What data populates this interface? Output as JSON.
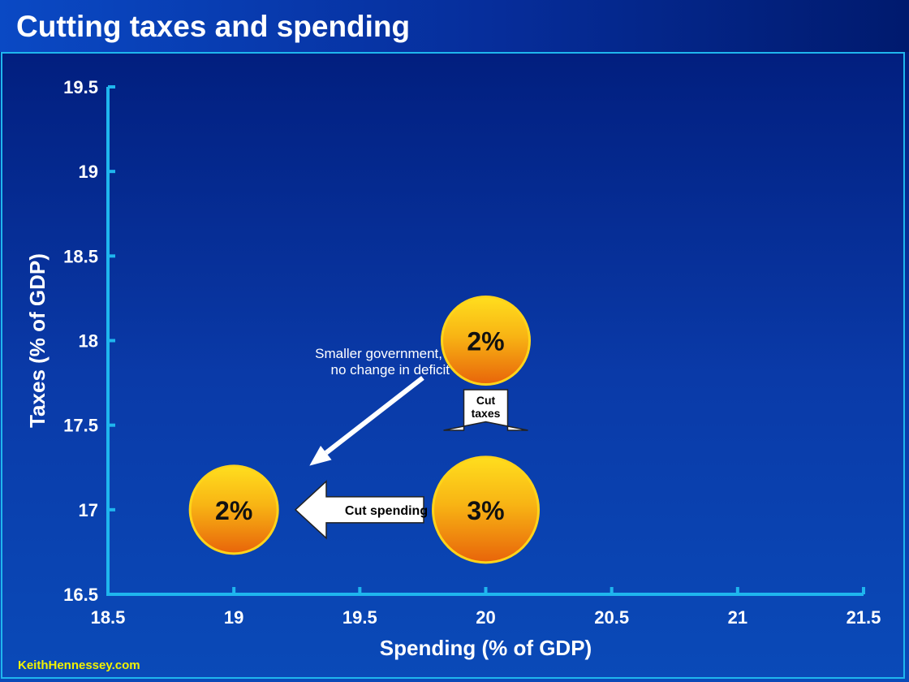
{
  "title": "Cutting taxes and spending",
  "footer": "KeithHennessey.com",
  "colors": {
    "axis": "#1fb6ee",
    "text": "#ffffff",
    "footer": "#f2f200",
    "bubble_top": "#ffde1e",
    "bubble_bottom": "#e8640a",
    "bubble_outline": "#ffd41a"
  },
  "chart_data": {
    "type": "scatter",
    "title": "",
    "xlabel": "Spending (% of GDP)",
    "ylabel": "Taxes (% of GDP)",
    "xlim": [
      18.5,
      21.5
    ],
    "ylim": [
      16.5,
      19.5
    ],
    "xticks": [
      18.5,
      19,
      19.5,
      20,
      20.5,
      21,
      21.5
    ],
    "yticks": [
      16.5,
      17,
      17.5,
      18,
      18.5,
      19,
      19.5
    ],
    "xtick_labels": [
      "18.5",
      "19",
      "19.5",
      "20",
      "20.5",
      "21",
      "21.5"
    ],
    "ytick_labels": [
      "16.5",
      "17",
      "17.5",
      "18",
      "18.5",
      "19",
      "19.5"
    ],
    "grid": false,
    "points": [
      {
        "x": 20,
        "y": 18,
        "label": "2%",
        "size": 2
      },
      {
        "x": 20,
        "y": 17,
        "label": "3%",
        "size": 3
      },
      {
        "x": 19,
        "y": 17,
        "label": "2%",
        "size": 2
      }
    ],
    "annotations": [
      {
        "kind": "block-arrow-down",
        "text": [
          "Cut",
          "taxes"
        ],
        "x": 20,
        "y": 17.52
      },
      {
        "kind": "block-arrow-left",
        "text": [
          "Cut spending"
        ],
        "x": 19.5,
        "y": 17
      },
      {
        "kind": "thin-arrow",
        "text": [
          "Smaller government, but",
          "no change in deficit"
        ],
        "from": [
          19.75,
          17.78
        ],
        "to": [
          19.3,
          17.26
        ],
        "text_at": [
          19.25,
          17.85
        ]
      }
    ]
  }
}
